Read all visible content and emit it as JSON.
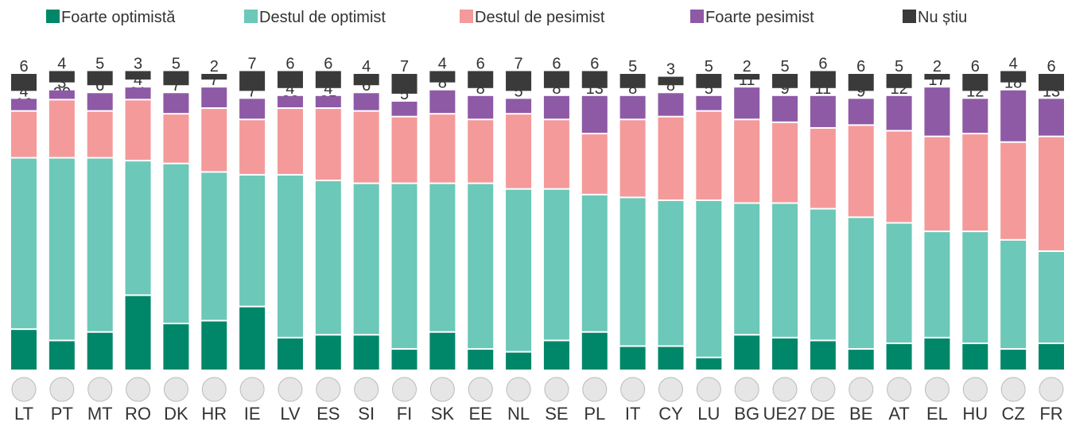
{
  "chart_data": {
    "type": "stacked_bar",
    "categories": [
      "LT",
      "PT",
      "MT",
      "RO",
      "DK",
      "HR",
      "IE",
      "LV",
      "ES",
      "SI",
      "FI",
      "SK",
      "EE",
      "NL",
      "SE",
      "PL",
      "IT",
      "CY",
      "LU",
      "BG",
      "UE27",
      "DE",
      "BE",
      "AT",
      "EL",
      "HU",
      "CZ",
      "FR"
    ],
    "series": [
      {
        "name": "Foarte optimistă",
        "color": "#00876a",
        "values": [
          14,
          10,
          13,
          26,
          16,
          17,
          22,
          11,
          12,
          12,
          7,
          13,
          7,
          6,
          10,
          13,
          8,
          8,
          4,
          12,
          11,
          10,
          7,
          9,
          11,
          9,
          7,
          9
        ]
      },
      {
        "name": "Destul de optimist",
        "color": "#6cc8b8",
        "values": [
          60,
          64,
          61,
          47,
          56,
          52,
          46,
          57,
          54,
          53,
          58,
          52,
          58,
          57,
          53,
          48,
          52,
          51,
          55,
          46,
          47,
          46,
          46,
          42,
          37,
          39,
          38,
          32
        ]
      },
      {
        "name": "Destul de pesimist",
        "color": "#f49a9a",
        "values": [
          16,
          20,
          16,
          21,
          17,
          22,
          19,
          23,
          25,
          25,
          23,
          24,
          22,
          26,
          24,
          21,
          27,
          29,
          31,
          29,
          28,
          28,
          32,
          32,
          33,
          34,
          34,
          40
        ]
      },
      {
        "name": "Foarte pesimist",
        "color": "#8e5aa6",
        "values": [
          4,
          3,
          6,
          4,
          7,
          7,
          7,
          4,
          4,
          6,
          5,
          8,
          8,
          5,
          8,
          13,
          8,
          8,
          5,
          11,
          9,
          11,
          9,
          12,
          17,
          12,
          18,
          13
        ]
      },
      {
        "name": "Nu știu",
        "color": "#3a3a3a",
        "values": [
          6,
          4,
          5,
          3,
          5,
          2,
          7,
          6,
          6,
          4,
          7,
          4,
          6,
          7,
          6,
          6,
          5,
          3,
          5,
          2,
          5,
          6,
          6,
          5,
          2,
          6,
          4,
          6
        ]
      }
    ],
    "legend": "top"
  }
}
